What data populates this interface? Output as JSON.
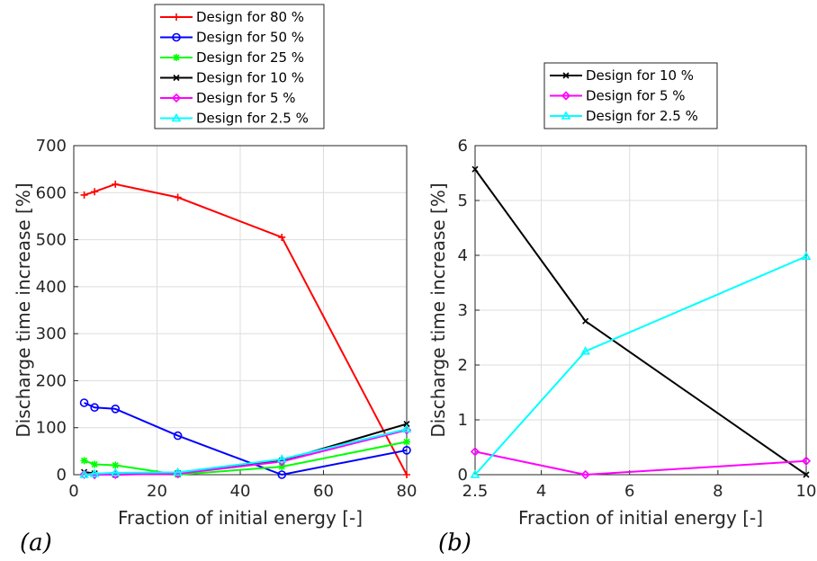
{
  "chart_data": [
    {
      "type": "line",
      "panel_label": "(a)",
      "xlabel": "Fraction of initial energy [-]",
      "ylabel": "Discharge time increase [%]",
      "xlim": [
        0,
        80
      ],
      "ylim": [
        0,
        700
      ],
      "xticks": [
        "0",
        "20",
        "40",
        "60",
        "80"
      ],
      "yticks": [
        "0",
        "100",
        "200",
        "300",
        "400",
        "500",
        "600",
        "700"
      ],
      "grid": true,
      "legend_position": "above",
      "x": [
        2.5,
        5,
        10,
        25,
        50,
        80
      ],
      "series": [
        {
          "name": "Design for 80 %",
          "color": "#ff0000",
          "marker": "plus",
          "values": [
            595,
            602,
            618,
            590,
            505,
            0
          ]
        },
        {
          "name": "Design for 50 %",
          "color": "#0000ff",
          "marker": "circle",
          "values": [
            153,
            143,
            140,
            83,
            0,
            52
          ]
        },
        {
          "name": "Design for 25 %",
          "color": "#00ff00",
          "marker": "asterisk",
          "values": [
            30,
            22,
            20,
            0,
            17,
            70
          ]
        },
        {
          "name": "Design for 10 %",
          "color": "#000000",
          "marker": "x",
          "values": [
            5.6,
            2.8,
            0,
            3,
            30,
            108
          ]
        },
        {
          "name": "Design for 5 %",
          "color": "#ff00ff",
          "marker": "diamond",
          "values": [
            0.4,
            0,
            0.3,
            2,
            28,
            95
          ]
        },
        {
          "name": "Design for 2.5 %",
          "color": "#00ffff",
          "marker": "triangle",
          "values": [
            0,
            2.2,
            4,
            5,
            33,
            97
          ]
        }
      ]
    },
    {
      "type": "line",
      "panel_label": "(b)",
      "xlabel": "Fraction of initial energy [-]",
      "ylabel": "Discharge time increase [%]",
      "xlim": [
        2.5,
        10
      ],
      "ylim": [
        0,
        6
      ],
      "xticks": [
        "2.5",
        "4",
        "6",
        "8",
        "10"
      ],
      "yticks": [
        "0",
        "1",
        "2",
        "3",
        "4",
        "5",
        "6"
      ],
      "grid": true,
      "legend_position": "above",
      "x": [
        2.5,
        5,
        10
      ],
      "series": [
        {
          "name": "Design for 10 %",
          "color": "#000000",
          "marker": "x",
          "values": [
            5.57,
            2.8,
            0
          ]
        },
        {
          "name": "Design for 5 %",
          "color": "#ff00ff",
          "marker": "diamond",
          "values": [
            0.42,
            0,
            0.25
          ]
        },
        {
          "name": "Design for 2.5 %",
          "color": "#00ffff",
          "marker": "triangle",
          "values": [
            0,
            2.25,
            3.98
          ]
        }
      ]
    }
  ]
}
